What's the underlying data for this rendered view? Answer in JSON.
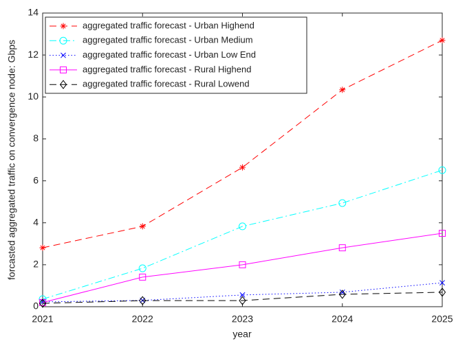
{
  "chart_data": {
    "type": "line",
    "x_label": "year",
    "y_label": "forcasted aggregated traffic on convergence node: Gbps",
    "x": [
      2021,
      2022,
      2023,
      2024,
      2025
    ],
    "xlim": [
      2021,
      2025
    ],
    "xticks": [
      2021,
      2022,
      2023,
      2024,
      2025
    ],
    "ylim": [
      0,
      14
    ],
    "yticks": [
      0,
      2,
      4,
      6,
      8,
      10,
      12,
      14
    ],
    "legend": "upper-left",
    "series": [
      {
        "name": "aggregated traffic forecast - Urban Highend",
        "color": "#ff0000",
        "marker": "star",
        "linestyle": "dashed",
        "values": [
          2.81,
          3.83,
          6.64,
          10.34,
          12.7
        ]
      },
      {
        "name": "aggregated traffic forecast - Urban Medium",
        "color": "#00ffff",
        "marker": "circle",
        "linestyle": "dashdot",
        "values": [
          0.36,
          1.83,
          3.83,
          4.94,
          6.51
        ]
      },
      {
        "name": "aggregated traffic forecast - Urban Low End",
        "color": "#0000ff",
        "marker": "x",
        "linestyle": "dotted",
        "values": [
          0.23,
          0.3,
          0.56,
          0.69,
          1.14
        ]
      },
      {
        "name": "aggregated traffic forecast - Rural Highend",
        "color": "#ff00ff",
        "marker": "square",
        "linestyle": "solid",
        "values": [
          0.2,
          1.41,
          2.0,
          2.81,
          3.5
        ]
      },
      {
        "name": "aggregated traffic forecast - Rural Lowend",
        "color": "#000000",
        "marker": "diamond",
        "linestyle": "dashed",
        "values": [
          0.16,
          0.29,
          0.29,
          0.59,
          0.69
        ]
      }
    ]
  }
}
